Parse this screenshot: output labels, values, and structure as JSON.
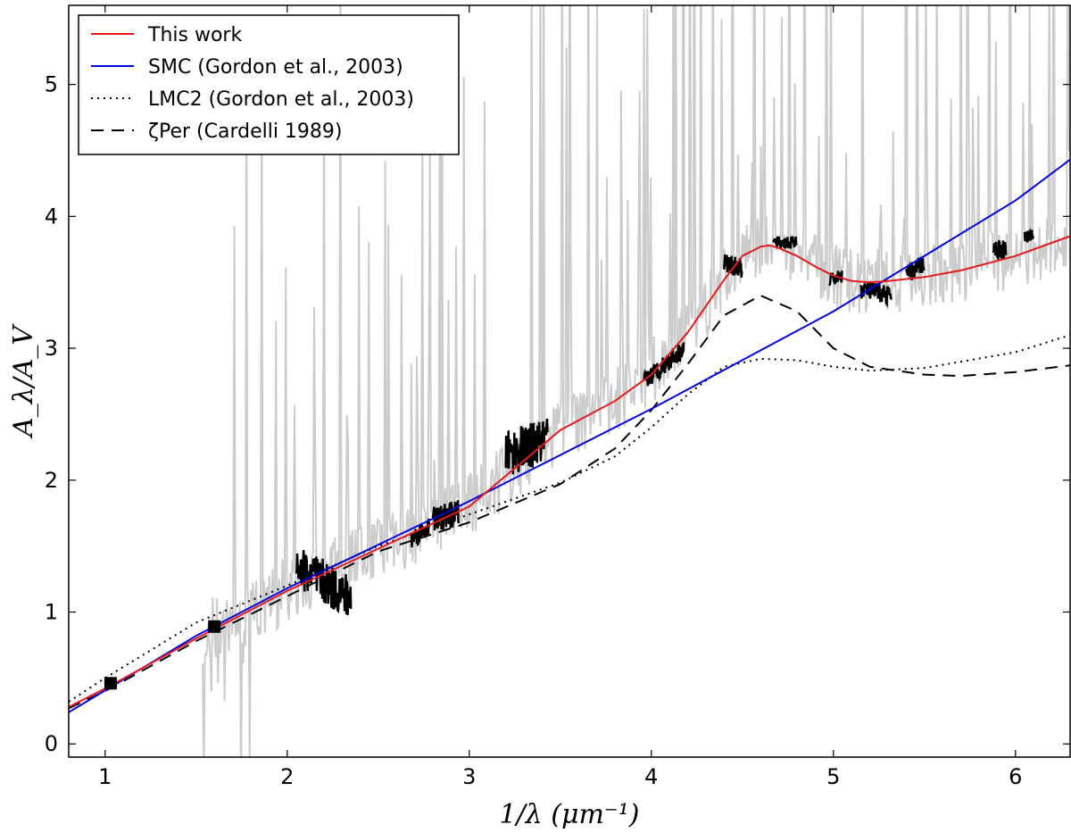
{
  "chart_data": {
    "type": "line",
    "xlabel": "1/λ  (μm⁻¹)",
    "ylabel": "A_λ/A_V",
    "xlim": [
      0.8,
      6.3
    ],
    "ylim": [
      -0.1,
      5.6
    ],
    "xticks": [
      1,
      2,
      3,
      4,
      5,
      6
    ],
    "yticks": [
      0,
      1,
      2,
      3,
      4,
      5
    ],
    "grid": false,
    "legend_position": "top-left",
    "series": [
      {
        "name": "This work",
        "color": "#e41a1c",
        "style": "solid",
        "x": [
          0.8,
          1.0,
          1.5,
          2.0,
          2.5,
          3.0,
          3.5,
          3.8,
          4.0,
          4.2,
          4.4,
          4.5,
          4.6,
          4.65,
          4.7,
          4.8,
          4.9,
          5.0,
          5.1,
          5.2,
          5.3,
          5.5,
          5.7,
          6.0,
          6.3
        ],
        "y": [
          0.28,
          0.42,
          0.8,
          1.16,
          1.48,
          1.8,
          2.38,
          2.6,
          2.8,
          3.12,
          3.52,
          3.7,
          3.77,
          3.78,
          3.76,
          3.7,
          3.62,
          3.55,
          3.51,
          3.5,
          3.51,
          3.54,
          3.59,
          3.7,
          3.85
        ]
      },
      {
        "name": "SMC  (Gordon et al., 2003)",
        "color": "#0000dd",
        "style": "solid",
        "x": [
          0.8,
          1.5,
          2.0,
          3.0,
          4.0,
          5.0,
          6.0,
          6.3
        ],
        "y": [
          0.24,
          0.82,
          1.18,
          1.84,
          2.54,
          3.28,
          4.12,
          4.43
        ]
      },
      {
        "name": "LMC2  (Gordon et al., 2003)",
        "color": "#000000",
        "style": "dotted",
        "x": [
          0.8,
          1.0,
          1.5,
          2.0,
          2.5,
          3.0,
          3.5,
          3.8,
          4.0,
          4.2,
          4.4,
          4.6,
          4.8,
          5.0,
          5.2,
          5.5,
          6.0,
          6.3
        ],
        "y": [
          0.32,
          0.5,
          0.92,
          1.2,
          1.5,
          1.74,
          1.98,
          2.18,
          2.4,
          2.65,
          2.86,
          2.92,
          2.91,
          2.86,
          2.83,
          2.85,
          2.97,
          3.1
        ]
      },
      {
        "name": "ζPer  (Cardelli 1989)",
        "color": "#000000",
        "style": "dashed",
        "x": [
          0.8,
          1.0,
          1.5,
          2.0,
          2.5,
          3.0,
          3.5,
          3.8,
          4.0,
          4.2,
          4.4,
          4.6,
          4.8,
          5.0,
          5.2,
          5.5,
          5.7,
          6.0,
          6.3
        ],
        "y": [
          0.27,
          0.4,
          0.78,
          1.12,
          1.46,
          1.68,
          1.97,
          2.24,
          2.53,
          2.88,
          3.25,
          3.4,
          3.28,
          3.0,
          2.86,
          2.8,
          2.79,
          2.82,
          2.87
        ]
      }
    ],
    "observed_segments": [
      {
        "x_range": [
          2.05,
          2.35
        ],
        "center": [
          1.35,
          1.1
        ],
        "noise": 0.35
      },
      {
        "x_range": [
          2.68,
          2.78
        ],
        "center": [
          1.55,
          1.65
        ],
        "noise": 0.15
      },
      {
        "x_range": [
          2.8,
          2.94
        ],
        "center": [
          1.7,
          1.75
        ],
        "noise": 0.2
      },
      {
        "x_range": [
          3.2,
          3.43
        ],
        "center": [
          2.2,
          2.3
        ],
        "noise": 0.35
      },
      {
        "x_range": [
          3.96,
          4.18
        ],
        "center": [
          2.75,
          3.0
        ],
        "noise": 0.15
      },
      {
        "x_range": [
          4.4,
          4.5
        ],
        "center": [
          3.65,
          3.6
        ],
        "noise": 0.15
      },
      {
        "x_range": [
          4.67,
          4.8
        ],
        "center": [
          3.8,
          3.8
        ],
        "noise": 0.1
      },
      {
        "x_range": [
          4.98,
          5.05
        ],
        "center": [
          3.52,
          3.55
        ],
        "noise": 0.1
      },
      {
        "x_range": [
          5.15,
          5.32
        ],
        "center": [
          3.45,
          3.4
        ],
        "noise": 0.15
      },
      {
        "x_range": [
          5.4,
          5.5
        ],
        "center": [
          3.55,
          3.65
        ],
        "noise": 0.15
      },
      {
        "x_range": [
          5.88,
          5.95
        ],
        "center": [
          3.75,
          3.75
        ],
        "noise": 0.15
      },
      {
        "x_range": [
          6.05,
          6.1
        ],
        "center": [
          3.85,
          3.85
        ],
        "noise": 0.1
      }
    ],
    "photometric_points": {
      "x": [
        1.03,
        1.6
      ],
      "y": [
        0.46,
        0.89
      ]
    },
    "colors": {
      "background_spectrum": "#cccccc",
      "observed": "#000000"
    }
  }
}
